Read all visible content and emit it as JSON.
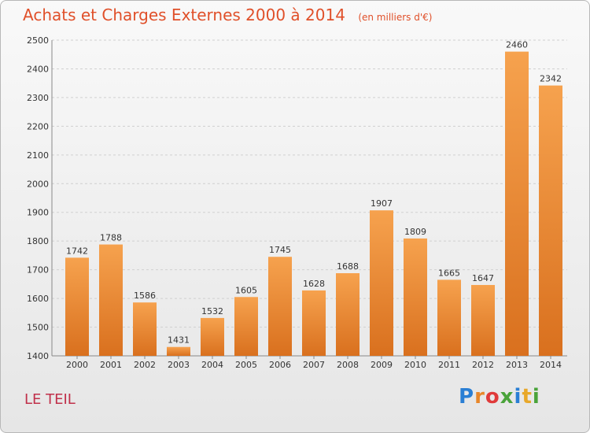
{
  "header": {
    "title": "Achats et Charges Externes 2000 à 2014",
    "subtitle": "(en milliers d'€)"
  },
  "footer": {
    "city": "LE TEIL",
    "logo_letters": [
      "P",
      "r",
      "o",
      "x",
      "i",
      "t",
      "i"
    ],
    "logo_colors": [
      "#2a7fd4",
      "#e8872a",
      "#e03a3a",
      "#4aa33a",
      "#2a7fd4",
      "#e8a82a",
      "#4aa33a"
    ]
  },
  "chart_data": {
    "type": "bar",
    "categories": [
      "2000",
      "2001",
      "2002",
      "2003",
      "2004",
      "2005",
      "2006",
      "2007",
      "2008",
      "2009",
      "2010",
      "2011",
      "2012",
      "2013",
      "2014"
    ],
    "values": [
      1742,
      1788,
      1586,
      1431,
      1532,
      1605,
      1745,
      1628,
      1688,
      1907,
      1809,
      1665,
      1647,
      2460,
      2342
    ],
    "ylim": [
      1400,
      2500
    ],
    "yticks": [
      1400,
      1500,
      1600,
      1700,
      1800,
      1900,
      2000,
      2100,
      2200,
      2300,
      2400,
      2500
    ],
    "grid": true,
    "bar_color_light": "#f6a24e",
    "bar_color_dark": "#d9701e"
  }
}
